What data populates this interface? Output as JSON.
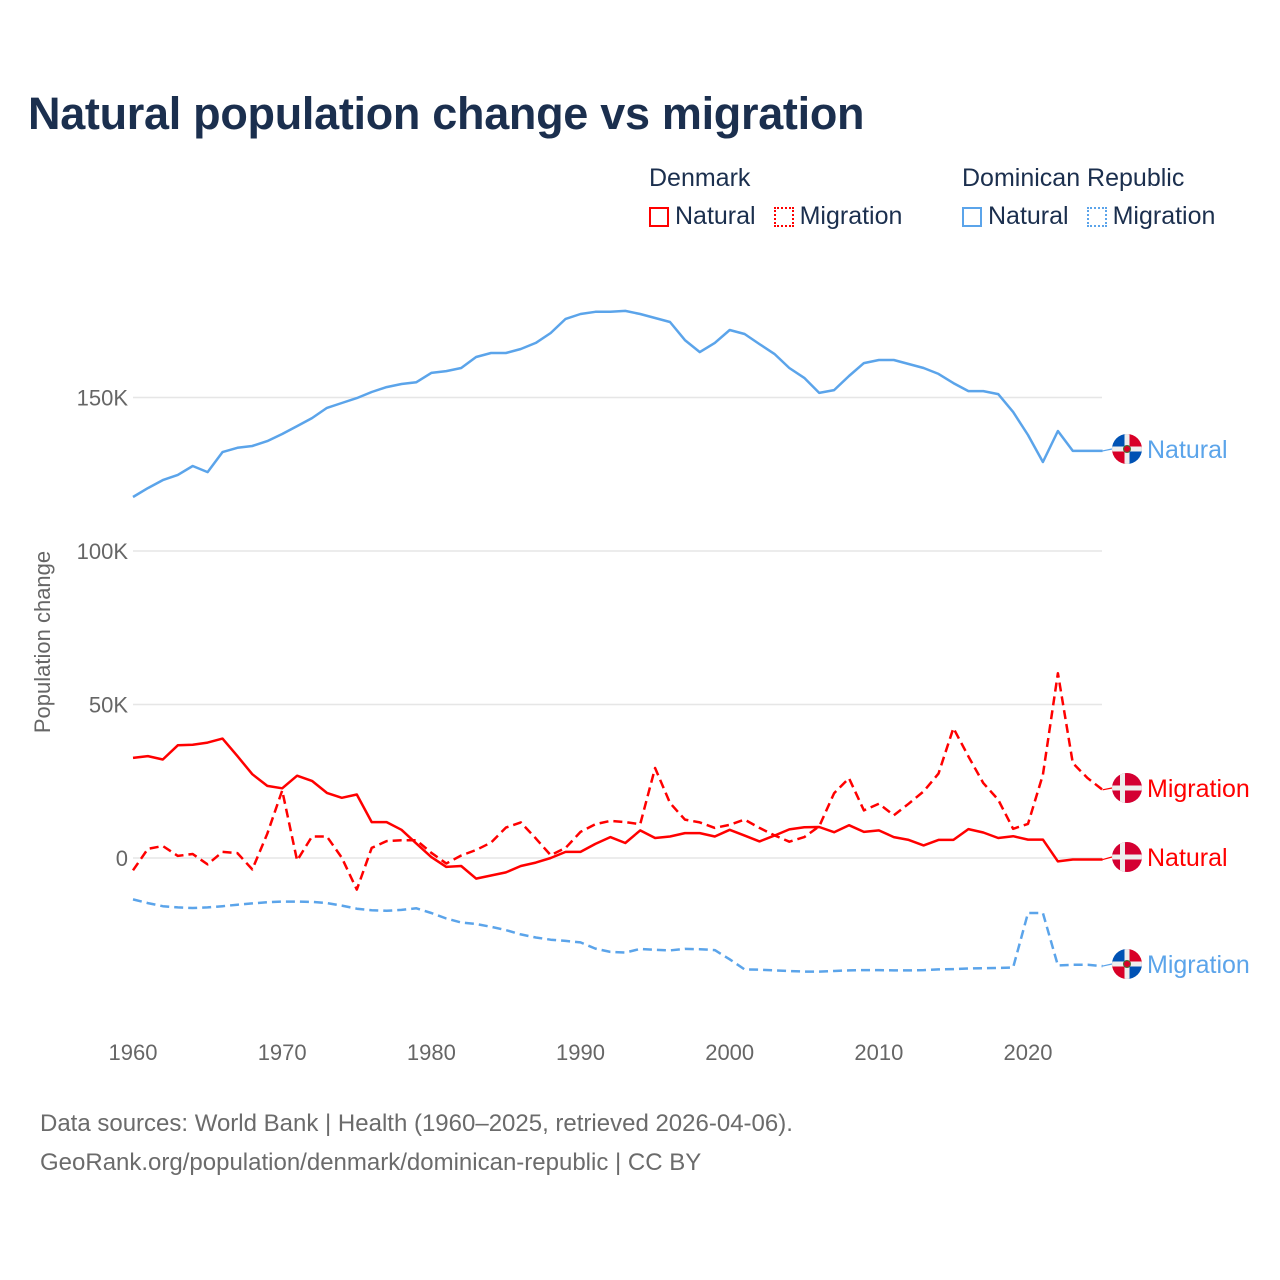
{
  "title": "Natural population change vs migration",
  "legend": {
    "groups": [
      {
        "name": "Denmark",
        "color": "#ff0000",
        "items": [
          "Natural",
          "Migration"
        ]
      },
      {
        "name": "Dominican Republic",
        "color": "#5ba4ea",
        "items": [
          "Natural",
          "Migration"
        ]
      }
    ]
  },
  "footer": {
    "line1": "Data sources: World Bank | Health (1960–2025, retrieved 2026-04-06).",
    "line2": "GeoRank.org/population/denmark/dominican-republic | CC BY"
  },
  "chart_data": {
    "type": "line",
    "title": "Natural population change vs migration",
    "xlabel": "",
    "ylabel": "Population change",
    "unit": "thousands",
    "xlim": [
      1960,
      2025
    ],
    "ylim": [
      -45,
      190
    ],
    "xticks": [
      1960,
      1970,
      1980,
      1990,
      2000,
      2010,
      2020
    ],
    "xtick_labels": [
      "1960",
      "1970",
      "1980",
      "1990",
      "2000",
      "2010",
      "2020"
    ],
    "yticks": [
      0,
      50,
      100,
      150
    ],
    "ytick_labels": [
      "0",
      "50K",
      "100K",
      "150K"
    ],
    "grid": "horizontal",
    "legend_position": "top-right",
    "x_start": 1960,
    "series": [
      {
        "name": "Dominican Republic Natural",
        "label": "Natural",
        "country": "Dominican Republic",
        "color": "#5ba4ea",
        "dash": false,
        "values": [
          117.6,
          120.5,
          123.1,
          124.8,
          127.7,
          125.7,
          132.2,
          133.6,
          134.2,
          135.8,
          138.1,
          140.7,
          143.3,
          146.6,
          148.2,
          149.8,
          151.8,
          153.4,
          154.4,
          155.0,
          158.0,
          158.6,
          159.6,
          163.2,
          164.5,
          164.5,
          165.8,
          167.8,
          171.0,
          175.6,
          177.2,
          177.9,
          177.9,
          178.2,
          177.2,
          175.9,
          174.6,
          168.7,
          164.8,
          167.8,
          172.0,
          170.7,
          167.4,
          164.2,
          159.6,
          156.4,
          151.5,
          152.4,
          157.0,
          161.2,
          162.2,
          162.2,
          160.9,
          159.6,
          157.7,
          154.7,
          152.1,
          152.1,
          151.1,
          145.3,
          137.8,
          129.0,
          139.1,
          132.6,
          132.6,
          132.6
        ]
      },
      {
        "name": "Denmark Migration",
        "label": "Migration",
        "country": "Denmark",
        "color": "#ff0000",
        "dash": true,
        "values": [
          -4.0,
          3.0,
          3.9,
          0.7,
          1.3,
          -2.1,
          2.0,
          1.6,
          -3.7,
          7.9,
          22.0,
          -0.8,
          7.0,
          7.0,
          0.1,
          -10.3,
          3.3,
          5.5,
          5.8,
          5.8,
          1.7,
          -1.8,
          0.8,
          2.6,
          5.0,
          9.9,
          11.6,
          6.4,
          0.9,
          3.3,
          8.5,
          11.0,
          12.1,
          11.7,
          11.0,
          29.3,
          17.9,
          12.5,
          11.6,
          9.8,
          10.8,
          12.5,
          9.8,
          7.4,
          5.3,
          6.8,
          10.3,
          21.1,
          26.0,
          15.5,
          17.7,
          13.9,
          17.7,
          21.7,
          27.5,
          42.3,
          33.1,
          24.4,
          19.0,
          9.5,
          11.1,
          27.1,
          60.2,
          30.9,
          26.0,
          22.2
        ]
      },
      {
        "name": "Denmark Natural",
        "label": "Natural",
        "country": "Denmark",
        "color": "#ff0000",
        "dash": false,
        "values": [
          32.6,
          33.2,
          32.1,
          36.7,
          36.9,
          37.6,
          38.9,
          33.2,
          27.3,
          23.5,
          22.7,
          26.8,
          25.1,
          21.2,
          19.6,
          20.7,
          11.7,
          11.7,
          9.2,
          4.7,
          0.3,
          -2.9,
          -2.6,
          -6.7,
          -5.7,
          -4.7,
          -2.6,
          -1.5,
          0.0,
          2.0,
          2.0,
          4.6,
          6.8,
          4.9,
          9.0,
          6.5,
          7.0,
          8.1,
          8.1,
          7.0,
          9.2,
          7.3,
          5.4,
          7.3,
          9.3,
          10.0,
          10.1,
          8.4,
          10.7,
          8.5,
          9.0,
          6.8,
          5.9,
          4.1,
          5.9,
          5.9,
          9.4,
          8.3,
          6.5,
          7.1,
          6.0,
          6.0,
          -1.1,
          -0.5,
          -0.5,
          -0.5
        ]
      },
      {
        "name": "Dominican Republic Migration",
        "label": "Migration",
        "country": "Dominican Republic",
        "color": "#5ba4ea",
        "dash": true,
        "values": [
          -13.5,
          -14.7,
          -15.7,
          -16.1,
          -16.3,
          -16.1,
          -15.7,
          -15.2,
          -14.8,
          -14.4,
          -14.2,
          -14.2,
          -14.3,
          -14.7,
          -15.5,
          -16.5,
          -17.0,
          -17.2,
          -16.9,
          -16.4,
          -17.9,
          -19.7,
          -21.0,
          -21.5,
          -22.4,
          -23.5,
          -24.9,
          -25.9,
          -26.6,
          -27.0,
          -27.5,
          -29.5,
          -30.6,
          -30.8,
          -29.6,
          -29.9,
          -30.1,
          -29.6,
          -29.7,
          -30.0,
          -33.0,
          -36.3,
          -36.4,
          -36.6,
          -36.8,
          -37.0,
          -37.0,
          -36.8,
          -36.6,
          -36.5,
          -36.5,
          -36.6,
          -36.6,
          -36.5,
          -36.3,
          -36.2,
          -36.0,
          -35.9,
          -35.8,
          -35.7,
          -17.9,
          -17.9,
          -35.0,
          -34.8,
          -34.8,
          -35.2
        ]
      }
    ]
  }
}
